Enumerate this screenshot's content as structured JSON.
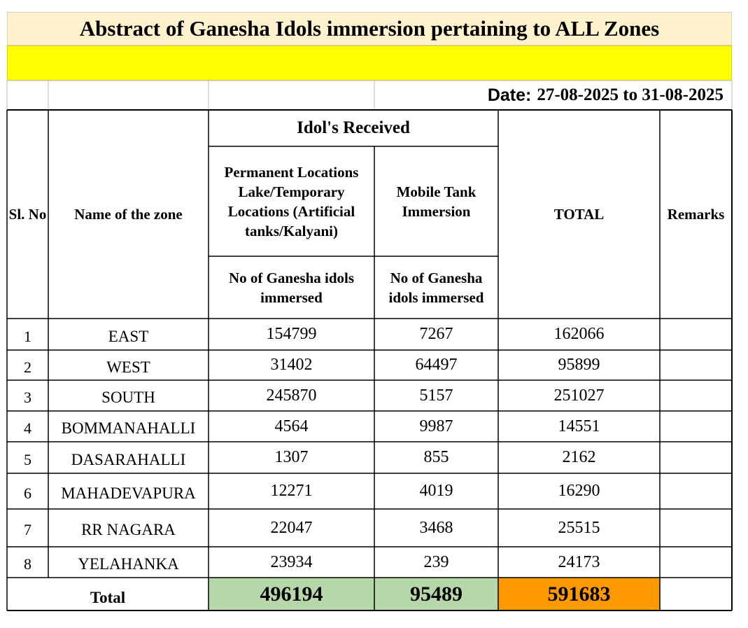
{
  "title": "Abstract of Ganesha Idols immersion pertaining to ALL Zones",
  "date": {
    "label": "Date:",
    "value": "27-08-2025 to 31-08-2025"
  },
  "headers": {
    "sl_no": "Sl. No",
    "zone": "Name of the zone",
    "idols_received": "Idol's Received",
    "permanent": "Permanent Locations Lake/Temporary Locations (Artificial tanks/Kalyani)",
    "mobile": "Mobile Tank Immersion",
    "total": "TOTAL",
    "remarks": "Remarks",
    "sub_permanent": "No of Ganesha idols immersed",
    "sub_mobile": "No of Ganesha idols immersed"
  },
  "rows": [
    {
      "sl": "1",
      "zone": "EAST",
      "permanent": "154799",
      "mobile": "7267",
      "total": "162066",
      "remarks": ""
    },
    {
      "sl": "2",
      "zone": "WEST",
      "permanent": "31402",
      "mobile": "64497",
      "total": "95899",
      "remarks": ""
    },
    {
      "sl": "3",
      "zone": "SOUTH",
      "permanent": "245870",
      "mobile": "5157",
      "total": "251027",
      "remarks": ""
    },
    {
      "sl": "4",
      "zone": "BOMMANAHALLI",
      "permanent": "4564",
      "mobile": "9987",
      "total": "14551",
      "remarks": ""
    },
    {
      "sl": "5",
      "zone": "DASARAHALLI",
      "permanent": "1307",
      "mobile": "855",
      "total": "2162",
      "remarks": ""
    },
    {
      "sl": "6",
      "zone": "MAHADEVAPURA",
      "permanent": "12271",
      "mobile": "4019",
      "total": "16290",
      "remarks": ""
    },
    {
      "sl": "7",
      "zone": "RR NAGARA",
      "permanent": "22047",
      "mobile": "3468",
      "total": "25515",
      "remarks": ""
    },
    {
      "sl": "8",
      "zone": "YELAHANKA",
      "permanent": "23934",
      "mobile": "239",
      "total": "24173",
      "remarks": ""
    }
  ],
  "totals": {
    "label": "Total",
    "permanent": "496194",
    "mobile": "95489",
    "total": "591683"
  },
  "colors": {
    "title_bg": "#FFF2CC",
    "yellow_bar": "#FFFF00",
    "total_green": "#B6D7A8",
    "total_orange": "#FF9900"
  }
}
